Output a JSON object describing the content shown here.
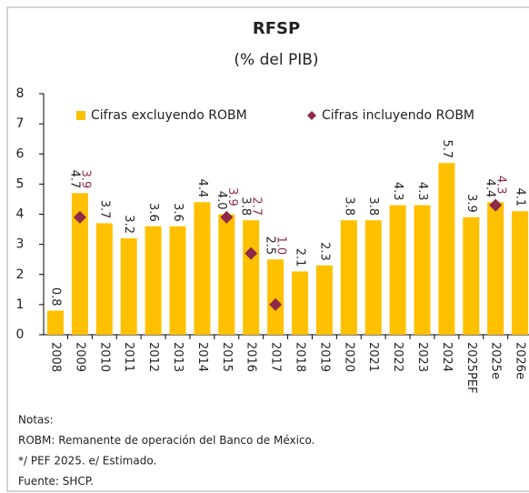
{
  "chart_data": {
    "type": "bar",
    "title": "RFSP",
    "subtitle": "(% del PIB)",
    "categories": [
      "2008",
      "2009",
      "2010",
      "2011",
      "2012",
      "2013",
      "2014",
      "2015",
      "2016",
      "2017",
      "2018",
      "2019",
      "2020",
      "2021",
      "2022",
      "2023",
      "2024",
      "2025PEF",
      "2025e",
      "2026e"
    ],
    "series": [
      {
        "name": "Cifras excluyendo ROBM",
        "color": "#FFC000",
        "kind": "bar",
        "values": [
          0.8,
          4.7,
          3.7,
          3.2,
          3.6,
          3.6,
          4.4,
          4.0,
          3.8,
          2.5,
          2.1,
          2.3,
          3.8,
          3.8,
          4.3,
          4.3,
          5.7,
          3.9,
          4.4,
          4.1
        ],
        "value_labels": [
          "0.8",
          "4.7",
          "3.7",
          "3.2",
          "3.6",
          "3.6",
          "4.4",
          "4.0",
          "3.8",
          "2.5",
          "2.1",
          "2.3",
          "3.8",
          "3.8",
          "4.3",
          "4.3",
          "5.7",
          "3.9",
          "4.4",
          "4.1"
        ]
      },
      {
        "name": "Cifras incluyendo ROBM",
        "color": "#8E2A4A",
        "kind": "diamond",
        "values": [
          null,
          3.9,
          null,
          null,
          null,
          null,
          null,
          3.9,
          2.7,
          1.0,
          null,
          null,
          null,
          null,
          null,
          null,
          null,
          null,
          4.3,
          null
        ],
        "value_labels": [
          null,
          "3.9",
          null,
          null,
          null,
          null,
          null,
          "3.9",
          "2.7",
          "1.0",
          null,
          null,
          null,
          null,
          null,
          null,
          null,
          null,
          "4.3",
          null
        ]
      }
    ],
    "ylim": [
      0,
      8
    ],
    "yticks": [
      0,
      1,
      2,
      3,
      4,
      5,
      6,
      7,
      8
    ],
    "legend": "top",
    "notes": [
      "Notas:",
      "ROBM: Remanente de operación del Banco de México.",
      "*/ PEF 2025. e/ Estimado.",
      "Fuente: SHCP."
    ]
  }
}
